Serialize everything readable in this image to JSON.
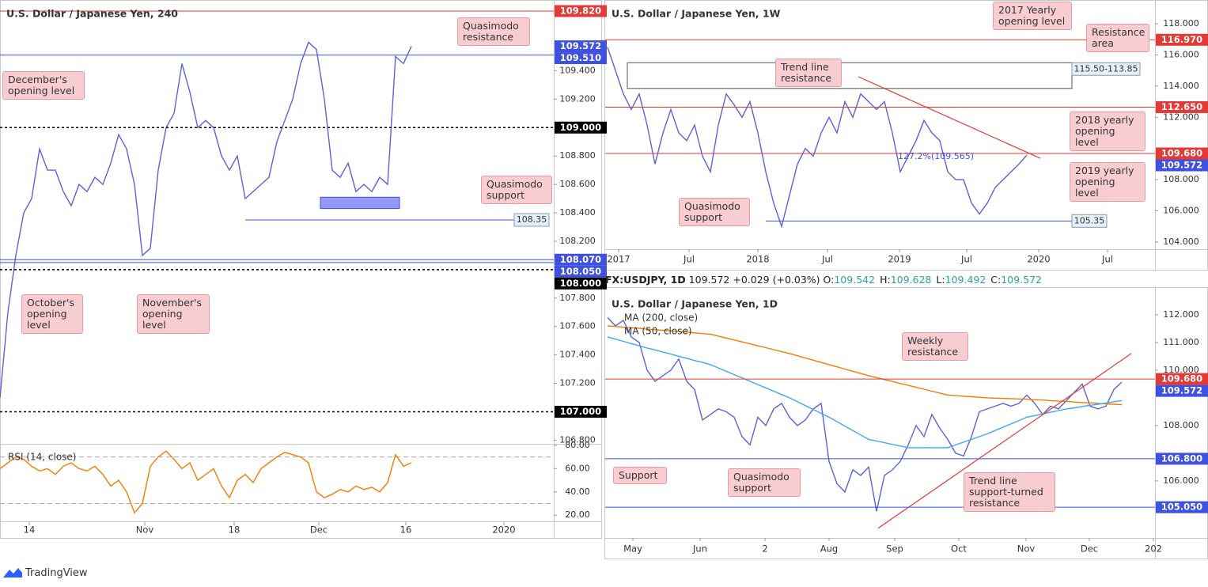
{
  "chart_data": [
    {
      "type": "line",
      "title": "U.S. Dollar / Japanese Yen, 240",
      "xlim": [
        0,
        70
      ],
      "ylim": [
        106.78,
        109.87
      ],
      "xticks": [
        {
          "value": 3.7,
          "label": "14"
        },
        {
          "value": 18.3,
          "label": "Nov"
        },
        {
          "value": 29.6,
          "label": "18"
        },
        {
          "value": 40.3,
          "label": "Dec"
        },
        {
          "value": 51.3,
          "label": "16"
        },
        {
          "value": 63.7,
          "label": "2020"
        }
      ],
      "yticks": [
        {
          "value": 109.4,
          "label": "109.400"
        },
        {
          "value": 109.2,
          "label": "109.200"
        },
        {
          "value": 108.8,
          "label": "108.800"
        },
        {
          "value": 108.6,
          "label": "108.600"
        },
        {
          "value": 108.4,
          "label": "108.400"
        },
        {
          "value": 108.2,
          "label": "108.200"
        },
        {
          "value": 107.8,
          "label": "107.800"
        },
        {
          "value": 107.6,
          "label": "107.600"
        },
        {
          "value": 107.4,
          "label": "107.400"
        },
        {
          "value": 107.2,
          "label": "107.200"
        },
        {
          "value": 106.8,
          "label": "106.800"
        }
      ],
      "series": [
        {
          "color": "#5c62d6",
          "values": [
            107.1,
            107.7,
            108.1,
            108.4,
            108.5,
            108.85,
            108.7,
            108.7,
            108.55,
            108.45,
            108.6,
            108.55,
            108.65,
            108.6,
            108.75,
            108.95,
            108.85,
            108.6,
            108.1,
            108.15,
            108.7,
            109.0,
            109.1,
            109.45,
            109.25,
            109.0,
            109.05,
            109.0,
            108.8,
            108.7,
            108.8,
            108.5,
            108.55,
            108.6,
            108.65,
            108.9,
            109.05,
            109.2,
            109.45,
            109.6,
            109.55,
            109.2,
            108.7,
            108.65,
            108.75,
            108.55,
            108.6,
            108.55,
            108.65,
            108.6,
            109.5,
            109.45,
            109.572
          ]
        }
      ],
      "levels": [
        {
          "value": 109.82,
          "label": "109.820",
          "color": "#e53935",
          "style": "solid"
        },
        {
          "value": 109.572,
          "label": "109.572",
          "color": "#3f51e0",
          "style": "none"
        },
        {
          "value": 109.51,
          "label": "109.510",
          "color": "#3f51e0",
          "style": "solid"
        },
        {
          "value": 109.0,
          "label": "109.000",
          "color": "#000000",
          "style": "dotted"
        },
        {
          "value": 108.07,
          "label": "108.070",
          "color": "#3f51e0",
          "style": "solid"
        },
        {
          "value": 108.05,
          "label": "108.050",
          "color": "#3f51e0",
          "style": "solid"
        },
        {
          "value": 108.0,
          "label": "108.000",
          "color": "#000000",
          "style": "dotted"
        },
        {
          "value": 107.0,
          "label": "107.000",
          "color": "#000000",
          "style": "dotted"
        }
      ],
      "marked_levels": [
        {
          "value": 108.35,
          "label": "108.35",
          "from": 31,
          "to": 65,
          "color": "#3f51e0"
        }
      ],
      "zones": [
        {
          "range": [
            108.43,
            108.51
          ],
          "x": [
            40.5,
            50.5
          ],
          "color": "#7b7ff0"
        }
      ],
      "annotations": [
        "Quasimodo resistance",
        "December's opening level",
        "Quasimodo support",
        "October's opening level",
        "November's opening level"
      ]
    },
    {
      "type": "line",
      "legend": "RSI (14, close)",
      "xlim": [
        0,
        70
      ],
      "ylim": [
        14,
        82
      ],
      "yticks": [
        {
          "value": 80,
          "label": "80.00"
        },
        {
          "value": 60,
          "label": "60.00"
        },
        {
          "value": 40,
          "label": "40.00"
        },
        {
          "value": 20,
          "label": "20.00"
        }
      ],
      "bands": [
        70,
        30
      ],
      "series": [
        {
          "color": "#f57c00",
          "values": [
            60,
            65,
            70,
            68,
            62,
            58,
            60,
            55,
            62,
            65,
            60,
            58,
            62,
            55,
            45,
            50,
            40,
            22,
            30,
            62,
            70,
            75,
            68,
            60,
            65,
            50,
            55,
            60,
            45,
            35,
            50,
            55,
            48,
            60,
            65,
            70,
            74,
            72,
            70,
            65,
            40,
            35,
            38,
            42,
            40,
            45,
            42,
            44,
            40,
            48,
            72,
            62,
            65
          ]
        }
      ]
    },
    {
      "type": "line",
      "title": "U.S. Dollar / Japanese Yen, 1W",
      "xlim": [
        -0.3,
        69.2
      ],
      "ylim": [
        103.54,
        119.42
      ],
      "xticks": [
        {
          "value": 1.4,
          "label": "2017"
        },
        {
          "value": 10.3,
          "label": "Jul"
        },
        {
          "value": 19.0,
          "label": "2018"
        },
        {
          "value": 27.8,
          "label": "Jul"
        },
        {
          "value": 36.9,
          "label": "2019"
        },
        {
          "value": 45.4,
          "label": "Jul"
        },
        {
          "value": 54.5,
          "label": "2020"
        },
        {
          "value": 63.2,
          "label": "Jul"
        }
      ],
      "yticks": [
        {
          "value": 118,
          "label": "118.000"
        },
        {
          "value": 116,
          "label": "116.000"
        },
        {
          "value": 114,
          "label": "114.000"
        },
        {
          "value": 112,
          "label": "112.000"
        },
        {
          "value": 108,
          "label": "108.000"
        },
        {
          "value": 106,
          "label": "106.000"
        },
        {
          "value": 104,
          "label": "104.000"
        }
      ],
      "series": [
        {
          "color": "#5c62d6",
          "values": [
            116.5,
            115.0,
            113.5,
            112.5,
            113.5,
            111.5,
            109.0,
            111.0,
            112.5,
            111.0,
            110.5,
            111.5,
            109.5,
            108.5,
            111.5,
            113.5,
            112.8,
            112.0,
            113.0,
            111.0,
            108.5,
            106.5,
            105.0,
            107.0,
            109.0,
            110.0,
            109.5,
            111.0,
            112.0,
            111.0,
            113.0,
            112.0,
            113.5,
            113.0,
            112.5,
            113.0,
            111.0,
            108.5,
            109.5,
            110.5,
            111.8,
            111.0,
            110.5,
            108.5,
            108.0,
            108.0,
            106.5,
            105.8,
            106.5,
            107.5,
            108.0,
            108.5,
            109.0,
            109.572
          ]
        }
      ],
      "levels": [
        {
          "value": 116.97,
          "label": "116.970",
          "color": "#e53935",
          "style": "solid"
        },
        {
          "value": 112.65,
          "label": "112.650",
          "color": "#e53935",
          "style": "solid"
        },
        {
          "value": 109.68,
          "label": "109.680",
          "color": "#e53935",
          "style": "solid"
        },
        {
          "value": 109.572,
          "label": "109.572",
          "color": "#3f51e0",
          "style": "none"
        }
      ],
      "marked_levels": [
        {
          "value": 105.35,
          "label": "105.35",
          "from": 20,
          "to": 58.7,
          "color": "#3f51e0"
        }
      ],
      "zones": [
        {
          "range": [
            113.85,
            115.5
          ],
          "x": [
            2.5,
            58.7
          ],
          "color": "none",
          "label": "115.50-113.85"
        }
      ],
      "trendlines": [
        {
          "x": [
            31.7,
            54.7
          ],
          "y": [
            114.6,
            109.37
          ],
          "color": "#e53935"
        }
      ],
      "annotations": [
        "2017 Yearly opening level",
        "Resistance area",
        "Trend line resistance",
        "2018 yearly opening level",
        "2019 yearly opening level",
        "Quasimodo support",
        "127.2%(109.565)"
      ]
    },
    {
      "type": "line",
      "title": "U.S. Dollar / Japanese Yen, 1D",
      "xlim": [
        -0.3,
        69.2
      ],
      "ylim": [
        103.94,
        112.94
      ],
      "xticks": [
        {
          "value": 3.2,
          "label": "May"
        },
        {
          "value": 11.7,
          "label": "Jun"
        },
        {
          "value": 19.9,
          "label": "2"
        },
        {
          "value": 28,
          "label": "Aug"
        },
        {
          "value": 36.3,
          "label": "Sep"
        },
        {
          "value": 44.4,
          "label": "Oct"
        },
        {
          "value": 52.9,
          "label": "Nov"
        },
        {
          "value": 60.9,
          "label": "Dec"
        },
        {
          "value": 69.0,
          "label": "202"
        }
      ],
      "yticks": [
        {
          "value": 112,
          "label": "112.000"
        },
        {
          "value": 111,
          "label": "111.000"
        },
        {
          "value": 110,
          "label": "110.000"
        },
        {
          "value": 108,
          "label": "108.000"
        },
        {
          "value": 106,
          "label": "106.000"
        }
      ],
      "series": [
        {
          "color": "#5c62d6",
          "values": [
            111.9,
            111.6,
            111.8,
            111.2,
            111.0,
            110.0,
            109.6,
            109.8,
            110.0,
            110.4,
            109.6,
            109.3,
            108.2,
            108.4,
            108.6,
            108.5,
            108.3,
            107.6,
            107.3,
            108.3,
            108.0,
            108.6,
            108.8,
            108.3,
            108.0,
            108.2,
            108.6,
            108.8,
            106.7,
            105.9,
            105.6,
            106.4,
            106.2,
            106.5,
            104.9,
            106.2,
            106.4,
            106.7,
            107.3,
            108.0,
            107.6,
            108.4,
            107.9,
            107.5,
            107.0,
            106.9,
            107.6,
            108.5,
            108.6,
            108.7,
            108.8,
            108.7,
            108.8,
            109.1,
            108.8,
            108.4,
            108.7,
            108.6,
            108.9,
            109.2,
            109.5,
            108.7,
            108.6,
            108.7,
            109.3,
            109.572
          ]
        },
        {
          "name": "MA (200, close)",
          "color": "#f57c00",
          "values": [
            111.6,
            111.58,
            111.55,
            111.53,
            111.51,
            111.48,
            111.46,
            111.44,
            111.42,
            111.39,
            111.37,
            111.35,
            111.32,
            111.3,
            111.23,
            111.16,
            111.09,
            111.02,
            110.95,
            110.88,
            110.81,
            110.74,
            110.67,
            110.6,
            110.52,
            110.44,
            110.36,
            110.28,
            110.2,
            110.12,
            110.04,
            109.96,
            109.88,
            109.8,
            109.73,
            109.66,
            109.59,
            109.52,
            109.45,
            109.38,
            109.31,
            109.24,
            109.17,
            109.1,
            109.08,
            109.06,
            109.04,
            109.02,
            109.0,
            108.99,
            108.98,
            108.97,
            108.96,
            108.95,
            108.93,
            108.92,
            108.9,
            108.88,
            108.87,
            108.85,
            108.83,
            108.82,
            108.8,
            108.78,
            108.77,
            108.75
          ]
        },
        {
          "name": "MA (50, close)",
          "color": "#42a5f5",
          "values": [
            111.2,
            111.12,
            111.04,
            110.96,
            110.88,
            110.8,
            110.73,
            110.65,
            110.58,
            110.5,
            110.43,
            110.35,
            110.28,
            110.2,
            110.08,
            109.96,
            109.84,
            109.72,
            109.6,
            109.48,
            109.36,
            109.24,
            109.12,
            109.0,
            108.86,
            108.72,
            108.58,
            108.44,
            108.3,
            108.14,
            107.98,
            107.82,
            107.66,
            107.5,
            107.44,
            107.38,
            107.32,
            107.26,
            107.2,
            107.2,
            107.2,
            107.2,
            107.2,
            107.2,
            107.3,
            107.4,
            107.5,
            107.6,
            107.7,
            107.82,
            107.94,
            108.06,
            108.18,
            108.3,
            108.36,
            108.42,
            108.48,
            108.54,
            108.6,
            108.64,
            108.69,
            108.73,
            108.77,
            108.81,
            108.86,
            108.9
          ]
        }
      ],
      "levels": [
        {
          "value": 109.68,
          "label": "109.680",
          "color": "#e53935",
          "style": "solid"
        },
        {
          "value": 109.572,
          "label": "109.572",
          "color": "#3f51e0",
          "style": "none"
        },
        {
          "value": 106.8,
          "label": "106.800",
          "color": "#3f51e0",
          "style": "solid"
        },
        {
          "value": 105.05,
          "label": "105.050",
          "color": "#3f51e0",
          "style": "solid"
        }
      ],
      "trendlines": [
        {
          "x": [
            34.2,
            66.2
          ],
          "y": [
            104.29,
            110.6
          ],
          "color": "#e53935"
        }
      ],
      "annotations": [
        "Weekly resistance",
        "Support",
        "Quasimodo support",
        "Trend line support-turned resistance"
      ]
    }
  ],
  "quote": {
    "symbol": "FX:USDJPY, 1D",
    "last": 109.572,
    "change": "+0.029 (+0.03%)",
    "ohlc": [
      {
        "label": "O:",
        "value": 109.542
      },
      {
        "label": "H:",
        "value": 109.628
      },
      {
        "label": "L:",
        "value": 109.492
      },
      {
        "label": "C:",
        "value": 109.572
      }
    ]
  },
  "footer": {
    "brand": "TradingView"
  }
}
